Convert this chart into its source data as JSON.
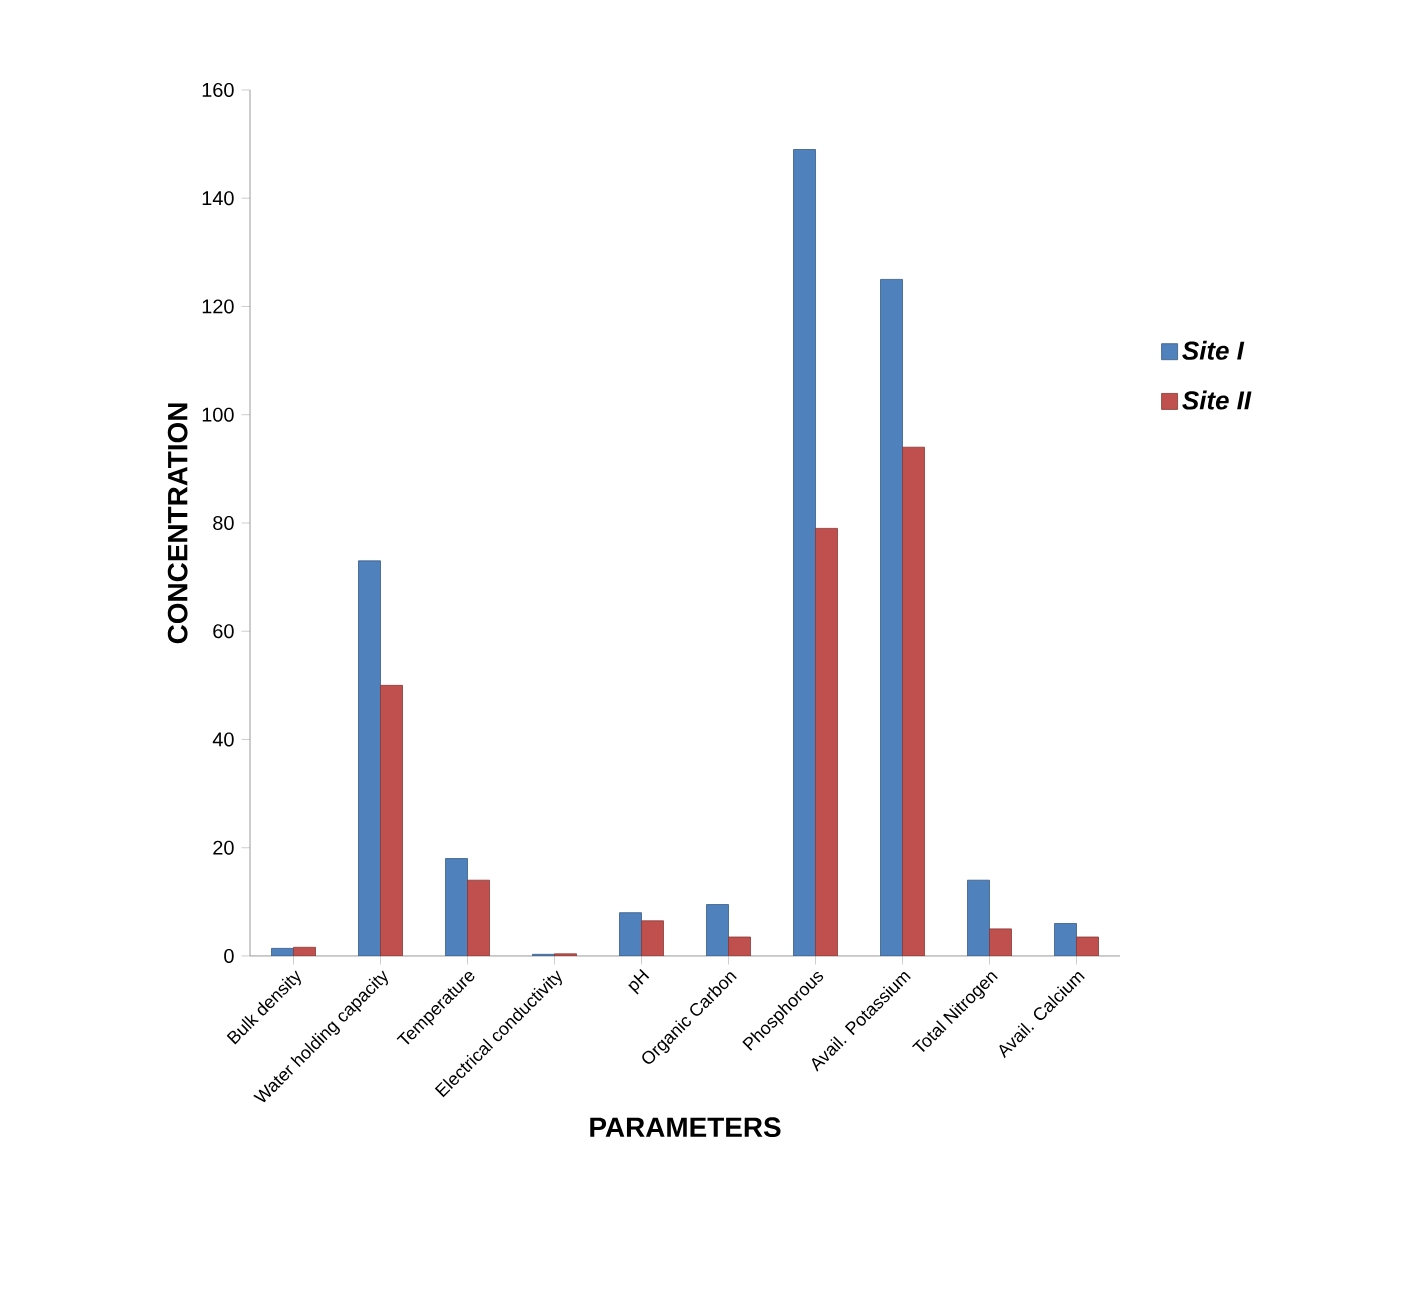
{
  "chart_data": {
    "type": "bar",
    "xlabel": "PARAMETERS",
    "ylabel": "CONCENTRATION",
    "categories": [
      "Bulk density",
      "Water holding capacity",
      "Temperature",
      "Electrical conductivity",
      "pH",
      "Organic Carbon",
      "Phosphorous",
      "Avail. Potassium",
      "Total Nitrogen",
      "Avail. Calcium"
    ],
    "series": [
      {
        "name": "Site I",
        "color": "#4f81bd",
        "values": [
          1.4,
          73,
          18,
          0.3,
          8,
          9.5,
          149,
          125,
          14,
          6
        ]
      },
      {
        "name": "Site II",
        "color": "#c0504d",
        "values": [
          1.6,
          50,
          14,
          0.4,
          6.5,
          3.5,
          79,
          94,
          5,
          3.5
        ]
      }
    ],
    "ylim": [
      0,
      160
    ],
    "yticks": [
      0,
      20,
      40,
      60,
      80,
      100,
      120,
      140,
      160
    ],
    "grid": false,
    "legend": "right"
  }
}
